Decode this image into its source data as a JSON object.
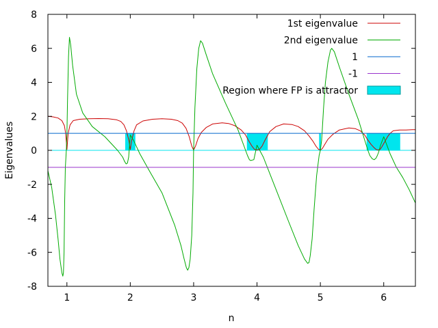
{
  "chart_data": {
    "type": "line",
    "title": "",
    "xlabel": "n",
    "ylabel": "Eigenvalues",
    "xlim": [
      0.7,
      6.5
    ],
    "ylim": [
      -8,
      8
    ],
    "xticks": [
      1,
      2,
      3,
      4,
      5,
      6
    ],
    "yticks": [
      -8,
      -6,
      -4,
      -2,
      0,
      2,
      4,
      6,
      8
    ],
    "grid": false,
    "legend": "top-right",
    "series": [
      {
        "name": "1st eigenvalue",
        "color": "#cc0000",
        "x": [
          0.7,
          0.78,
          0.86,
          0.92,
          0.96,
          0.98,
          1.0,
          1.02,
          1.05,
          1.1,
          1.2,
          1.35,
          1.5,
          1.65,
          1.78,
          1.85,
          1.9,
          1.94,
          1.98,
          2.0,
          2.02,
          2.06,
          2.1,
          2.2,
          2.35,
          2.5,
          2.65,
          2.75,
          2.82,
          2.88,
          2.93,
          2.97,
          3.0,
          3.03,
          3.07,
          3.12,
          3.2,
          3.3,
          3.45,
          3.55,
          3.65,
          3.75,
          3.82,
          3.87,
          3.92,
          3.96,
          4.0,
          4.04,
          4.08,
          4.12,
          4.2,
          4.3,
          4.42,
          4.55,
          4.65,
          4.75,
          4.82,
          4.88,
          4.93,
          4.97,
          5.0,
          5.03,
          5.07,
          5.12,
          5.2,
          5.3,
          5.45,
          5.55,
          5.63,
          5.7,
          5.75,
          5.8,
          5.85,
          5.88,
          5.91,
          5.94,
          5.97,
          6.0,
          6.03,
          6.06,
          6.1,
          6.15,
          6.25,
          6.35,
          6.45,
          6.5
        ],
        "y": [
          2.0,
          1.97,
          1.9,
          1.75,
          1.45,
          1.0,
          0.05,
          1.0,
          1.5,
          1.75,
          1.83,
          1.86,
          1.87,
          1.86,
          1.8,
          1.7,
          1.5,
          1.15,
          0.55,
          0.05,
          0.55,
          1.15,
          1.5,
          1.73,
          1.83,
          1.86,
          1.83,
          1.75,
          1.6,
          1.3,
          0.8,
          0.25,
          0.02,
          0.25,
          0.7,
          1.05,
          1.35,
          1.55,
          1.62,
          1.58,
          1.45,
          1.2,
          0.9,
          0.55,
          0.25,
          0.06,
          0.02,
          0.06,
          0.25,
          0.55,
          1.1,
          1.4,
          1.55,
          1.52,
          1.4,
          1.15,
          0.85,
          0.55,
          0.25,
          0.06,
          0.02,
          0.1,
          0.35,
          0.65,
          0.95,
          1.2,
          1.32,
          1.28,
          1.15,
          0.9,
          0.6,
          0.35,
          0.15,
          0.05,
          0.02,
          0.05,
          0.2,
          0.4,
          0.6,
          0.8,
          1.0,
          1.15,
          1.2,
          1.2,
          1.22,
          1.22
        ]
      },
      {
        "name": "2nd eigenvalue",
        "color": "#00aa00",
        "x": [
          0.7,
          0.76,
          0.82,
          0.86,
          0.89,
          0.92,
          0.935,
          0.945,
          0.955,
          0.965,
          0.975,
          0.99,
          1.0,
          1.01,
          1.025,
          1.04,
          1.06,
          1.09,
          1.15,
          1.25,
          1.4,
          1.6,
          1.8,
          1.88,
          1.91,
          1.935,
          1.955,
          1.975,
          2.0,
          2.05,
          2.15,
          2.3,
          2.5,
          2.7,
          2.8,
          2.85,
          2.885,
          2.905,
          2.925,
          2.945,
          2.97,
          2.99,
          3.0,
          3.02,
          3.05,
          3.08,
          3.11,
          3.14,
          3.2,
          3.3,
          3.5,
          3.7,
          3.8,
          3.85,
          3.88,
          3.9,
          3.95,
          4.0,
          4.1,
          4.3,
          4.5,
          4.65,
          4.75,
          4.8,
          4.82,
          4.84,
          4.87,
          4.9,
          4.94,
          4.98,
          5.0,
          5.02,
          5.05,
          5.08,
          5.12,
          5.16,
          5.18,
          5.22,
          5.3,
          5.45,
          5.6,
          5.7,
          5.75,
          5.78,
          5.82,
          5.85,
          5.88,
          5.9,
          5.92,
          5.95,
          6.0,
          6.1,
          6.2,
          6.3,
          6.4,
          6.5
        ],
        "y": [
          -1.2,
          -2.2,
          -3.8,
          -5.2,
          -6.4,
          -7.2,
          -7.4,
          -7.2,
          -6.0,
          -3.0,
          -1.0,
          0.0,
          1.0,
          3.0,
          5.5,
          6.65,
          6.2,
          5.0,
          3.3,
          2.2,
          1.4,
          0.8,
          0.0,
          -0.4,
          -0.65,
          -0.8,
          -0.75,
          -0.4,
          0.9,
          0.6,
          -0.2,
          -1.2,
          -2.5,
          -4.4,
          -5.6,
          -6.4,
          -6.9,
          -7.05,
          -6.9,
          -6.4,
          -5.0,
          -2.5,
          0.0,
          2.5,
          4.8,
          6.0,
          6.45,
          6.3,
          5.6,
          4.5,
          2.8,
          1.2,
          0.2,
          -0.3,
          -0.55,
          -0.6,
          -0.55,
          0.3,
          -0.4,
          -2.3,
          -4.2,
          -5.6,
          -6.4,
          -6.65,
          -6.6,
          -6.2,
          -5.2,
          -3.5,
          -1.5,
          -0.3,
          0.0,
          0.6,
          2.5,
          4.0,
          5.2,
          5.9,
          6.0,
          5.8,
          4.9,
          3.3,
          1.8,
          0.6,
          0.0,
          -0.3,
          -0.5,
          -0.55,
          -0.45,
          -0.3,
          -0.1,
          0.3,
          0.8,
          -0.2,
          -1.0,
          -1.6,
          -2.3,
          -3.1
        ]
      },
      {
        "name": "1",
        "color": "#0066cc",
        "x": [
          0.7,
          6.5
        ],
        "y": [
          1,
          1
        ]
      },
      {
        "name": "-1",
        "color": "#9933cc",
        "x": [
          0.7,
          6.5
        ],
        "y": [
          -1,
          -1
        ]
      },
      {
        "name": "Region where FP is attractor",
        "color": "#00e5ee",
        "type": "area",
        "baseline": [
          0,
          0
        ],
        "regions": [
          {
            "x0": 1.92,
            "x1": 2.08,
            "y0": 0,
            "y1": 1
          },
          {
            "x0": 3.84,
            "x1": 4.17,
            "y0": 0,
            "y1": 1
          },
          {
            "x0": 4.98,
            "x1": 5.01,
            "y0": 0,
            "y1": 1
          },
          {
            "x0": 5.73,
            "x1": 6.26,
            "y0": 0,
            "y1": 1
          }
        ]
      }
    ]
  }
}
